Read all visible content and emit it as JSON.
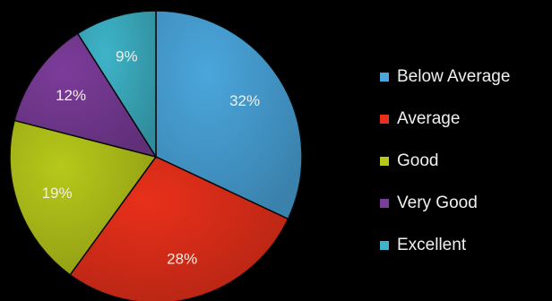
{
  "chart_data": {
    "type": "pie",
    "slices": [
      {
        "label": "Below Average",
        "value": 32,
        "display": "32%",
        "color": "#4aa6dc"
      },
      {
        "label": "Average",
        "value": 28,
        "display": "28%",
        "color": "#e8301a"
      },
      {
        "label": "Good",
        "value": 19,
        "display": "19%",
        "color": "#b7c81a"
      },
      {
        "label": "Very Good",
        "value": 12,
        "display": "12%",
        "color": "#7b3c9a"
      },
      {
        "label": "Excellent",
        "value": 9,
        "display": "9%",
        "color": "#3eb4c8"
      }
    ],
    "legend_position": "right",
    "start_angle": "top",
    "direction": "clockwise"
  }
}
